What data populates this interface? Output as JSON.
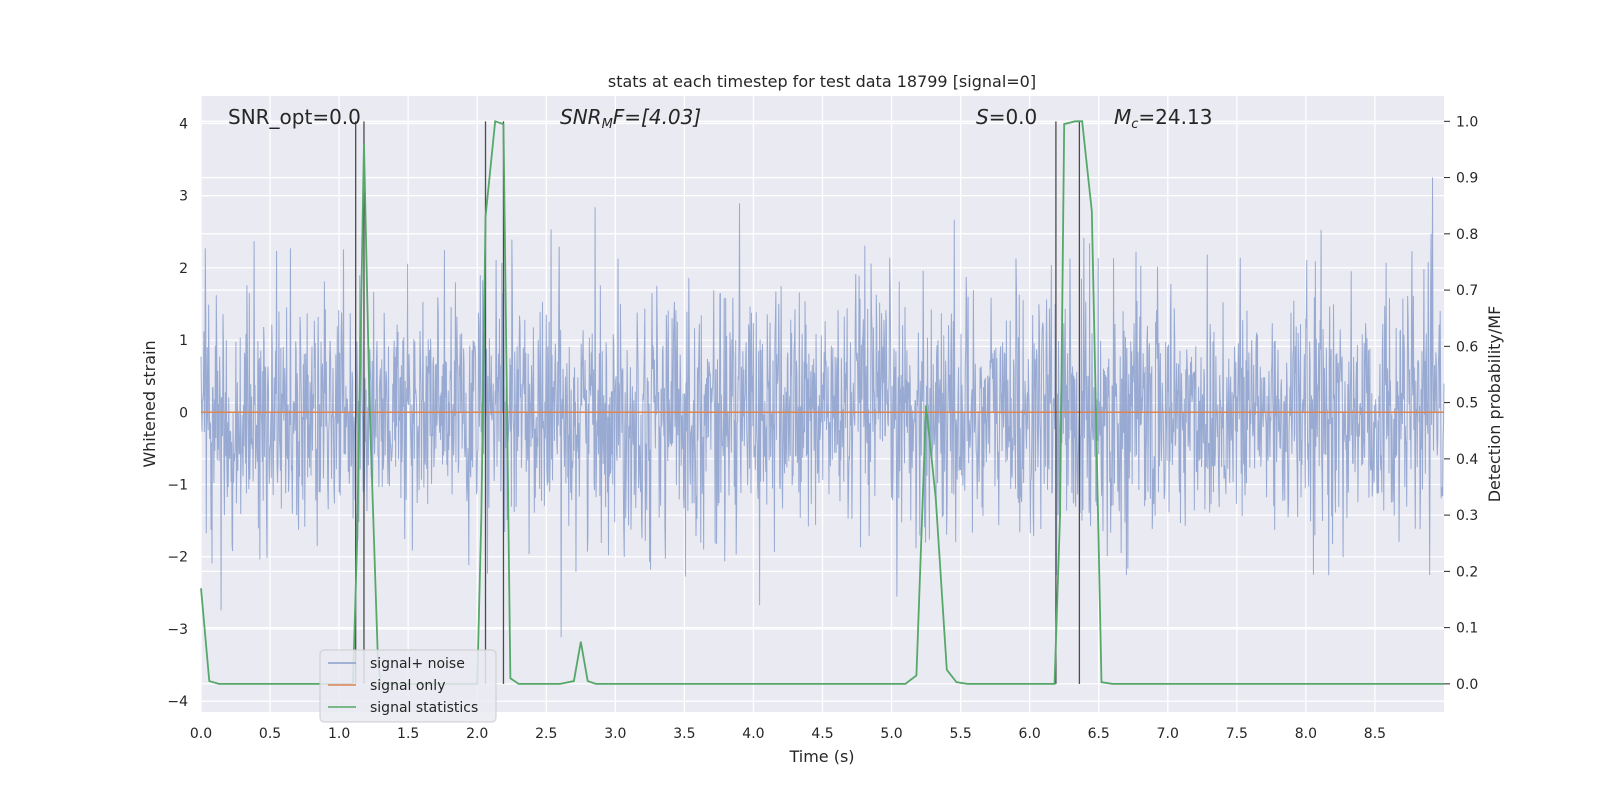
{
  "chart_data": {
    "type": "line",
    "title": "stats at each timestep for test data 18799 [signal=0]",
    "xlabel": "Time (s)",
    "ylabel_left": "Whitened strain",
    "ylabel_right": "Detection probability/MF",
    "xlim": [
      0,
      9.0
    ],
    "ylim_left": [
      -4.15,
      4.38
    ],
    "ylim_right": [
      -0.05,
      1.045
    ],
    "x_ticks": [
      "0.0",
      "0.5",
      "1.0",
      "1.5",
      "2.0",
      "2.5",
      "3.0",
      "3.5",
      "4.0",
      "4.5",
      "5.0",
      "5.5",
      "6.0",
      "6.5",
      "7.0",
      "7.5",
      "8.0",
      "8.5"
    ],
    "y_ticks_left": [
      "4",
      "3",
      "2",
      "1",
      "0",
      "−1",
      "−2",
      "−3",
      "−4"
    ],
    "y_ticks_right": [
      "1.0",
      "0.9",
      "0.8",
      "0.7",
      "0.6",
      "0.5",
      "0.4",
      "0.3",
      "0.2",
      "0.1",
      "0.0"
    ],
    "grid": true,
    "legend_position": "lower-left",
    "annotations": {
      "snr_opt": "SNR_opt=0.0",
      "snr_mf_prefix": "SNR",
      "snr_mf_sub": "M",
      "snr_mf_suffix": "F=[4.03]",
      "s_var": "S",
      "s_value": "=0.0",
      "mc_var": "M",
      "mc_sub": "c",
      "mc_value": "=24.13"
    },
    "colors": {
      "noise": "#8a9fcc",
      "signal": "#dd8452",
      "stats": "#55a868",
      "vlines": "#4c4c4c",
      "background": "#eaeaf2"
    },
    "series": [
      {
        "name": "signal+ noise",
        "noise_std": 0.85,
        "noise_max": 3.9,
        "noise_min": -3.9
      },
      {
        "name": "signal only",
        "x": [
          0,
          9.0
        ],
        "y": [
          0,
          0
        ]
      },
      {
        "name": "signal statistics",
        "axis": "right",
        "x": [
          0.0,
          0.06,
          0.13,
          0.2,
          0.5,
          1.0,
          1.03,
          1.1,
          1.13,
          1.18,
          1.22,
          1.28,
          1.3,
          1.5,
          1.9,
          2.0,
          2.03,
          2.06,
          2.13,
          2.19,
          2.24,
          2.3,
          2.6,
          2.7,
          2.75,
          2.8,
          2.86,
          3.0,
          4.0,
          5.0,
          5.1,
          5.18,
          5.25,
          5.32,
          5.4,
          5.47,
          5.55,
          6.0,
          6.18,
          6.22,
          6.25,
          6.33,
          6.38,
          6.45,
          6.52,
          6.6,
          7.0,
          8.0,
          9.0
        ],
        "y": [
          0.17,
          0.005,
          0.0,
          0.0,
          0.0,
          0.0,
          0.0,
          0.0,
          0.25,
          0.96,
          0.5,
          0.05,
          0.0,
          0.0,
          0.0,
          0.0,
          0.3,
          0.83,
          1.0,
          0.995,
          0.01,
          0.0,
          0.0,
          0.005,
          0.075,
          0.005,
          0.0,
          0.0,
          0.0,
          0.0,
          0.0,
          0.015,
          0.495,
          0.33,
          0.025,
          0.003,
          0.0,
          0.0,
          0.0,
          0.3,
          0.995,
          1.0,
          1.0,
          0.84,
          0.003,
          0.0,
          0.0,
          0.0,
          0.0
        ]
      }
    ],
    "vlines_x": [
      1.12,
      1.18,
      2.06,
      2.19,
      6.19,
      6.36
    ]
  }
}
